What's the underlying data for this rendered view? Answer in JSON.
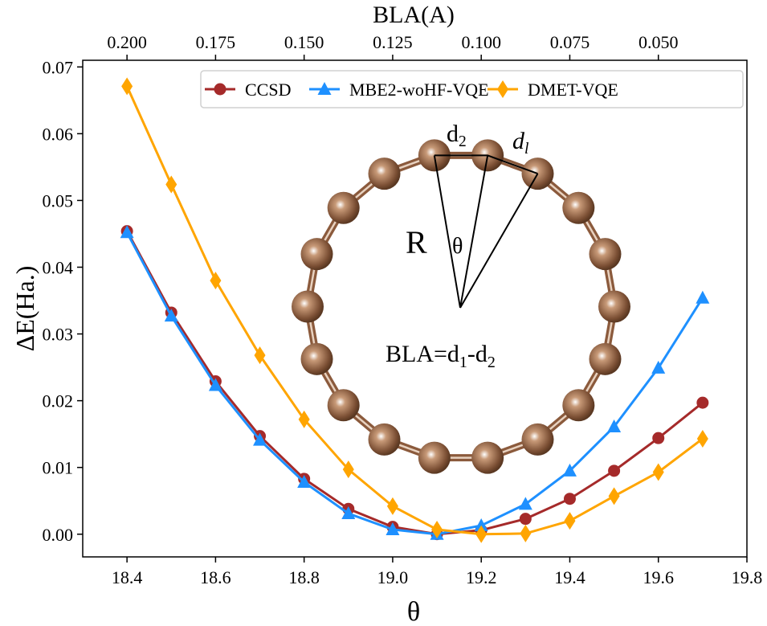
{
  "chart_data": {
    "type": "line",
    "xlabel": "θ",
    "ylabel": "ΔE(Ha.)",
    "top_xlabel": "BLA(A)",
    "xlim": [
      18.3,
      19.8
    ],
    "ylim": [
      -0.0034,
      0.071
    ],
    "x_ticks": [
      "18.4",
      "18.6",
      "18.8",
      "19.0",
      "19.2",
      "19.4",
      "19.6",
      "19.8"
    ],
    "y_ticks": [
      "0.00",
      "0.01",
      "0.02",
      "0.03",
      "0.04",
      "0.05",
      "0.06",
      "0.07"
    ],
    "top_ticks": [
      {
        "theta": 18.4,
        "label": "0.200"
      },
      {
        "theta": 18.5,
        "label": "0.175"
      },
      {
        "theta": 18.6,
        "label": "0.150"
      },
      {
        "theta": 18.7,
        "label": "0.125"
      },
      {
        "theta": 18.8,
        "label": "0.100"
      },
      {
        "theta": 18.9,
        "label": "0.075"
      },
      {
        "theta": 19.0,
        "label": "0.050"
      }
    ],
    "grid": false,
    "legend_placement": "top-right",
    "x": [
      18.4,
      18.5,
      18.6,
      18.7,
      18.8,
      18.9,
      19.0,
      19.1,
      19.2,
      19.3,
      19.4,
      19.5,
      19.6,
      19.7
    ],
    "series": [
      {
        "name": "CCSD",
        "color": "#a52a2a",
        "marker": "circle",
        "values": [
          0.0454,
          0.0332,
          0.0229,
          0.0147,
          0.0083,
          0.0038,
          0.0011,
          0.0,
          0.0006,
          0.0023,
          0.0053,
          0.0095,
          0.0144,
          0.0197
        ]
      },
      {
        "name": "MBE2-woHF-VQE",
        "color": "#1e90ff",
        "marker": "triangle",
        "values": [
          0.0452,
          0.0327,
          0.0223,
          0.0141,
          0.0078,
          0.0031,
          0.0007,
          0.0,
          0.0013,
          0.0045,
          0.0095,
          0.0161,
          0.0249,
          0.0354
        ]
      },
      {
        "name": "DMET-VQE",
        "color": "#ffa500",
        "marker": "diamond",
        "values": [
          0.0671,
          0.0524,
          0.038,
          0.0268,
          0.0172,
          0.0097,
          0.0042,
          0.0007,
          0.0,
          0.0001,
          0.002,
          0.0057,
          0.0093,
          0.0143
        ]
      }
    ],
    "inset": {
      "atom_count": 18,
      "atom_color": "#8b5a3c",
      "labels": {
        "d2": "d",
        "d2_sub": "2",
        "d1": "d",
        "d1_sub": "l",
        "R": "R",
        "theta": "θ",
        "bla_prefix": "BLA=d",
        "bla_sub1": "1",
        "bla_mid": "-d",
        "bla_sub2": "2"
      }
    }
  }
}
